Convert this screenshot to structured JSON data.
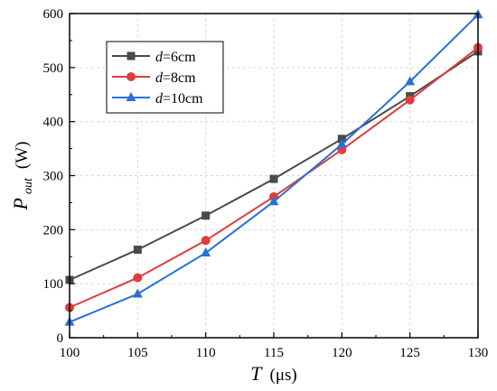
{
  "chart_data": {
    "type": "line",
    "x": [
      100,
      105,
      110,
      115,
      120,
      125,
      130
    ],
    "xlim": [
      100,
      130
    ],
    "ylim": [
      0,
      600
    ],
    "x_ticks": [
      100,
      105,
      110,
      115,
      120,
      125,
      130
    ],
    "y_ticks": [
      0,
      100,
      200,
      300,
      400,
      500,
      600
    ],
    "xlabel": {
      "symbol": "T",
      "unit": "(μs)"
    },
    "ylabel": {
      "symbol": "P",
      "subscript": "out",
      "unit": "(W)"
    },
    "grid": true,
    "legend_position": "top-left",
    "series": [
      {
        "legend_var": "d",
        "legend_value": "=6cm",
        "marker": "square",
        "color": "#4a4a4a",
        "values": [
          107,
          163,
          226,
          294,
          368,
          447,
          530
        ]
      },
      {
        "legend_var": "d",
        "legend_value": "=8cm",
        "marker": "circle",
        "color": "#e03c3c",
        "values": [
          56,
          111,
          180,
          261,
          348,
          440,
          537
        ]
      },
      {
        "legend_var": "d",
        "legend_value": "=10cm",
        "marker": "triangle",
        "color": "#2a6fd6",
        "values": [
          29,
          81,
          157,
          252,
          358,
          474,
          598
        ]
      }
    ]
  }
}
